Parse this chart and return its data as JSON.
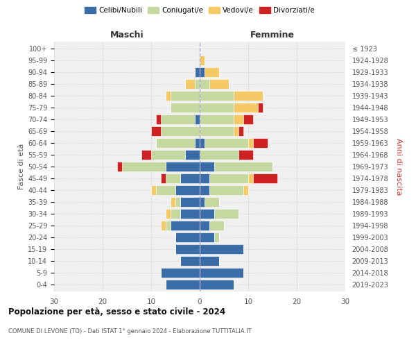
{
  "age_groups": [
    "0-4",
    "5-9",
    "10-14",
    "15-19",
    "20-24",
    "25-29",
    "30-34",
    "35-39",
    "40-44",
    "45-49",
    "50-54",
    "55-59",
    "60-64",
    "65-69",
    "70-74",
    "75-79",
    "80-84",
    "85-89",
    "90-94",
    "95-99",
    "100+"
  ],
  "birth_years": [
    "2019-2023",
    "2014-2018",
    "2009-2013",
    "2004-2008",
    "1999-2003",
    "1994-1998",
    "1989-1993",
    "1984-1988",
    "1979-1983",
    "1974-1978",
    "1969-1973",
    "1964-1968",
    "1959-1963",
    "1954-1958",
    "1949-1953",
    "1944-1948",
    "1939-1943",
    "1934-1938",
    "1929-1933",
    "1924-1928",
    "≤ 1923"
  ],
  "male": {
    "celibi": [
      7,
      8,
      4,
      5,
      5,
      6,
      4,
      4,
      5,
      4,
      7,
      3,
      1,
      0,
      1,
      0,
      0,
      0,
      1,
      0,
      0
    ],
    "coniugati": [
      0,
      0,
      0,
      0,
      0,
      1,
      2,
      1,
      4,
      3,
      9,
      7,
      8,
      8,
      7,
      6,
      6,
      1,
      0,
      0,
      0
    ],
    "vedovi": [
      0,
      0,
      0,
      0,
      0,
      1,
      1,
      1,
      1,
      0,
      0,
      0,
      0,
      0,
      0,
      0,
      1,
      2,
      0,
      0,
      0
    ],
    "divorziati": [
      0,
      0,
      0,
      0,
      0,
      0,
      0,
      0,
      0,
      1,
      1,
      2,
      0,
      2,
      1,
      0,
      0,
      0,
      0,
      0,
      0
    ]
  },
  "female": {
    "celibi": [
      7,
      9,
      4,
      9,
      3,
      2,
      3,
      1,
      2,
      2,
      3,
      0,
      1,
      0,
      0,
      0,
      0,
      0,
      1,
      0,
      0
    ],
    "coniugati": [
      0,
      0,
      0,
      0,
      1,
      3,
      5,
      3,
      7,
      8,
      12,
      8,
      9,
      7,
      7,
      7,
      7,
      2,
      0,
      0,
      0
    ],
    "vedovi": [
      0,
      0,
      0,
      0,
      0,
      0,
      0,
      0,
      1,
      1,
      0,
      0,
      1,
      1,
      2,
      5,
      6,
      4,
      3,
      1,
      0
    ],
    "divorziati": [
      0,
      0,
      0,
      0,
      0,
      0,
      0,
      0,
      0,
      5,
      0,
      3,
      3,
      1,
      2,
      1,
      0,
      0,
      0,
      0,
      0
    ]
  },
  "colors": {
    "celibi": "#3a6ca8",
    "coniugati": "#c5d8a0",
    "vedovi": "#f5c965",
    "divorziati": "#cc2222"
  },
  "title": "Popolazione per età, sesso e stato civile - 2024",
  "subtitle": "COMUNE DI LEVONE (TO) - Dati ISTAT 1° gennaio 2024 - Elaborazione TUTTITALIA.IT",
  "xlabel_left": "Maschi",
  "xlabel_right": "Femmine",
  "ylabel_left": "Fasce di età",
  "ylabel_right": "Anni di nascita",
  "xlim": 30,
  "legend_labels": [
    "Celibi/Nubili",
    "Coniugati/e",
    "Vedovi/e",
    "Divorziati/e"
  ],
  "bg_color": "#f0f0f0"
}
